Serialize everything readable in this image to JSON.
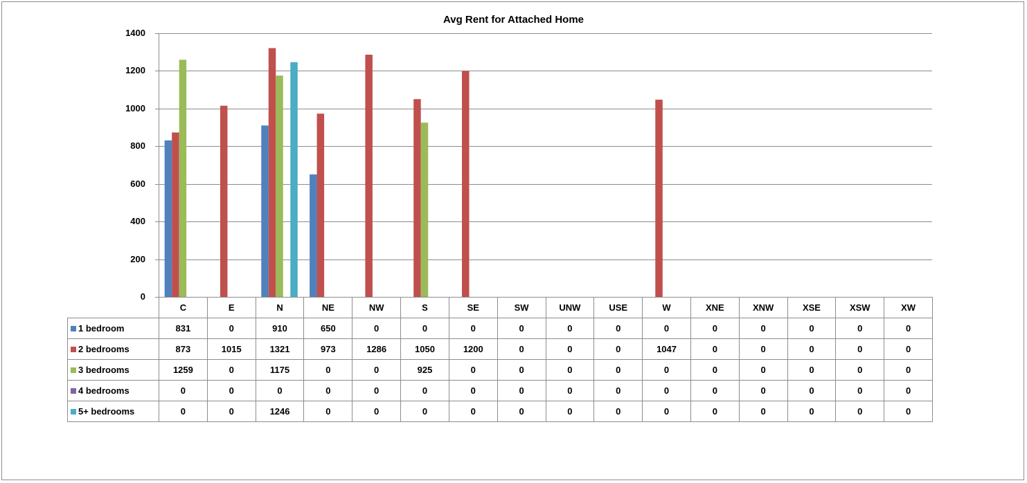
{
  "chart_data": {
    "type": "bar",
    "title": "Avg Rent for Attached Home",
    "xlabel": "",
    "ylabel": "",
    "ylim": [
      0,
      1400
    ],
    "yticks": [
      0,
      200,
      400,
      600,
      800,
      1000,
      1200,
      1400
    ],
    "grid": true,
    "legend": "data-table",
    "categories": [
      "C",
      "E",
      "N",
      "NE",
      "NW",
      "S",
      "SE",
      "SW",
      "UNW",
      "USE",
      "W",
      "XNE",
      "XNW",
      "XSE",
      "XSW",
      "XW"
    ],
    "series": [
      {
        "name": "1 bedroom",
        "color": "#4f81bd",
        "values": [
          831,
          0,
          910,
          650,
          0,
          0,
          0,
          0,
          0,
          0,
          0,
          0,
          0,
          0,
          0,
          0
        ]
      },
      {
        "name": "2 bedrooms",
        "color": "#c0504d",
        "values": [
          873,
          1015,
          1321,
          973,
          1286,
          1050,
          1200,
          0,
          0,
          0,
          1047,
          0,
          0,
          0,
          0,
          0
        ]
      },
      {
        "name": "3 bedrooms",
        "color": "#9bbb59",
        "values": [
          1259,
          0,
          1175,
          0,
          0,
          925,
          0,
          0,
          0,
          0,
          0,
          0,
          0,
          0,
          0,
          0
        ]
      },
      {
        "name": "4 bedrooms",
        "color": "#8064a2",
        "values": [
          0,
          0,
          0,
          0,
          0,
          0,
          0,
          0,
          0,
          0,
          0,
          0,
          0,
          0,
          0,
          0
        ]
      },
      {
        "name": "5+ bedrooms",
        "color": "#4bacc6",
        "values": [
          0,
          0,
          1246,
          0,
          0,
          0,
          0,
          0,
          0,
          0,
          0,
          0,
          0,
          0,
          0,
          0
        ]
      }
    ]
  }
}
